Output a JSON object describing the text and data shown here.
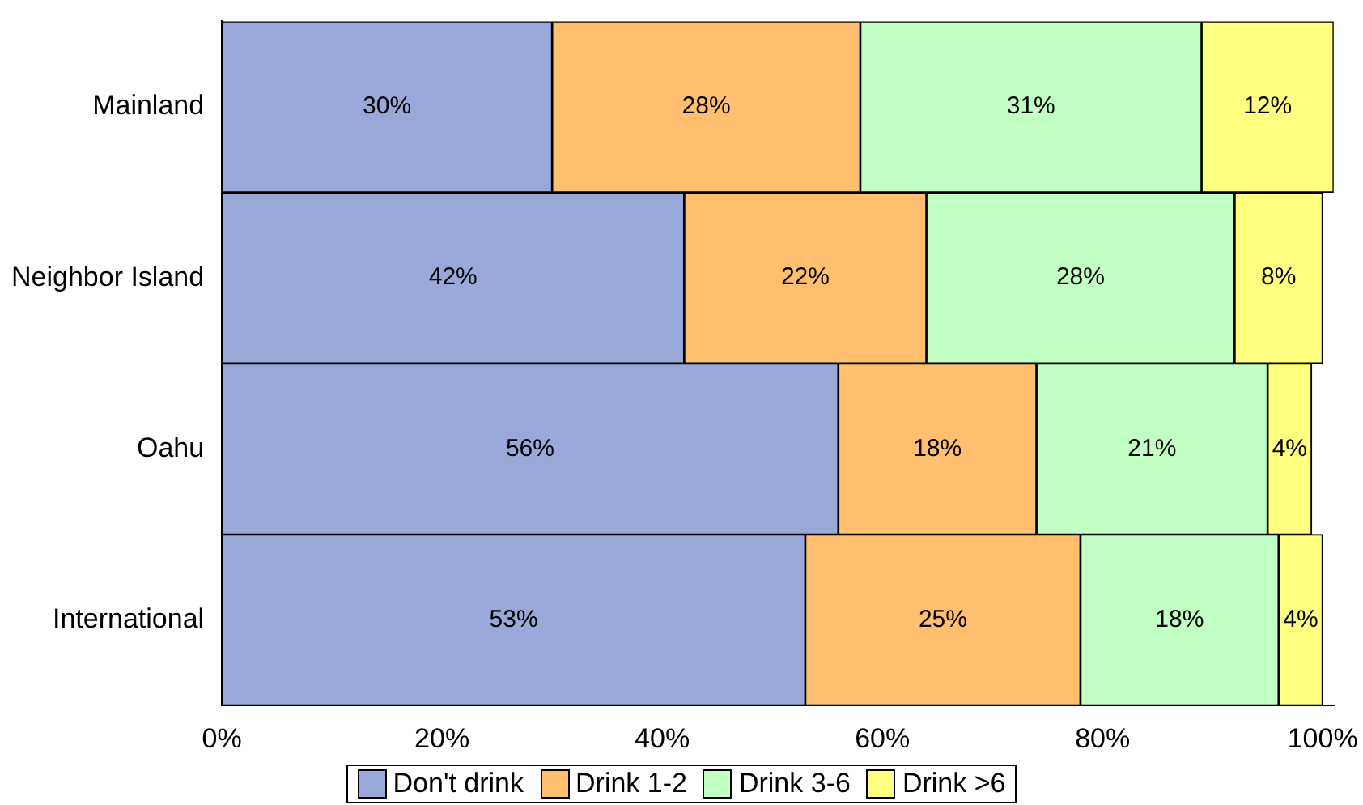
{
  "chart_data": {
    "type": "bar",
    "orientation": "horizontal",
    "stacked": true,
    "categories": [
      "Mainland",
      "Neighbor Island",
      "Oahu",
      "International"
    ],
    "series": [
      {
        "name": "Don't drink",
        "color": "#99a8d8",
        "values": [
          30,
          42,
          56,
          53
        ],
        "value_labels": [
          "30%",
          "42%",
          "56%",
          "53%"
        ]
      },
      {
        "name": "Drink 1-2",
        "color": "#ffbf6e",
        "values": [
          28,
          22,
          18,
          25
        ],
        "value_labels": [
          "28%",
          "22%",
          "18%",
          "25%"
        ]
      },
      {
        "name": "Drink 3-6",
        "color": "#c2ffc2",
        "values": [
          31,
          28,
          21,
          18
        ],
        "value_labels": [
          "31%",
          "28%",
          "21%",
          "18%"
        ]
      },
      {
        "name": "Drink >6",
        "color": "#ffff80",
        "values": [
          12,
          8,
          4,
          4
        ],
        "value_labels": [
          "12%",
          "8%",
          "4%",
          "4%"
        ]
      }
    ],
    "xlim": [
      0,
      101
    ],
    "xticks": [
      {
        "value": 0,
        "label": "0%"
      },
      {
        "value": 20,
        "label": "20%"
      },
      {
        "value": 40,
        "label": "40%"
      },
      {
        "value": 60,
        "label": "60%"
      },
      {
        "value": 80,
        "label": "80%"
      },
      {
        "value": 100,
        "label": "100%"
      }
    ],
    "legend": "bottom",
    "grid": false
  }
}
